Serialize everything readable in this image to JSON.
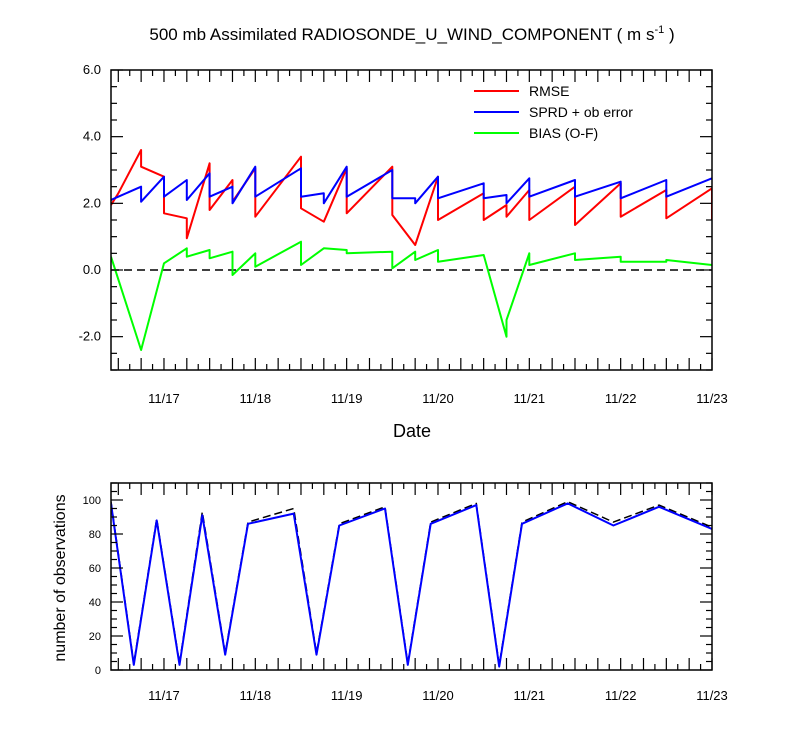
{
  "title_main": "500 mb Assimilated RADIOSONDE_U_WIND_COMPONENT ( m s",
  "title_exp": "-1",
  "title_close": " )",
  "colors": {
    "rmse": "#ff0000",
    "sprd": "#0000ff",
    "bias": "#00ff00",
    "obs_used": "#0000ff",
    "obs_possible": "#000000",
    "zero": "#000000"
  },
  "chart_data": [
    {
      "type": "line",
      "xlabel": "Date",
      "ylabel": "",
      "xlim": [
        16.42,
        23.0
      ],
      "ylim": [
        -3.0,
        6.0
      ],
      "x_ticks": [
        17,
        18,
        19,
        20,
        21,
        22,
        23
      ],
      "x_ticklabels": [
        "11/17",
        "11/18",
        "11/19",
        "11/20",
        "11/21",
        "11/22",
        "11/23"
      ],
      "y_ticks": [
        -2,
        0,
        2,
        4,
        6
      ],
      "y_ticklabels": [
        "-2.0",
        "0.0",
        "2.0",
        "4.0",
        "6.0"
      ],
      "legend_position": "top-right",
      "zero_line": "dashed",
      "series": [
        {
          "name": "RMSE",
          "color_key": "rmse",
          "points": [
            [
              16.42,
              1.95
            ],
            [
              16.5,
              2.3
            ],
            [
              16.75,
              3.6
            ],
            [
              16.75,
              3.1
            ],
            [
              17.0,
              2.8
            ],
            [
              17.0,
              1.7
            ],
            [
              17.25,
              1.55
            ],
            [
              17.25,
              0.95
            ],
            [
              17.5,
              3.2
            ],
            [
              17.5,
              1.8
            ],
            [
              17.75,
              2.7
            ],
            [
              17.75,
              2.05
            ],
            [
              18.0,
              3.05
            ],
            [
              18.0,
              1.6
            ],
            [
              18.5,
              3.4
            ],
            [
              18.5,
              1.85
            ],
            [
              18.75,
              1.45
            ],
            [
              19.0,
              3.05
            ],
            [
              19.0,
              1.7
            ],
            [
              19.5,
              3.1
            ],
            [
              19.5,
              1.65
            ],
            [
              19.75,
              0.75
            ],
            [
              20.0,
              2.8
            ],
            [
              20.0,
              1.5
            ],
            [
              20.5,
              2.3
            ],
            [
              20.5,
              1.5
            ],
            [
              20.75,
              1.95
            ],
            [
              20.75,
              1.6
            ],
            [
              21.0,
              2.4
            ],
            [
              21.0,
              1.5
            ],
            [
              21.5,
              2.5
            ],
            [
              21.5,
              1.35
            ],
            [
              22.0,
              2.6
            ],
            [
              22.0,
              1.6
            ],
            [
              22.5,
              2.4
            ],
            [
              22.5,
              1.55
            ],
            [
              23.0,
              2.45
            ],
            [
              23.0,
              1.5
            ]
          ]
        },
        {
          "name": "SPRD + ob error",
          "color_key": "sprd",
          "points": [
            [
              16.42,
              2.1
            ],
            [
              16.5,
              2.2
            ],
            [
              16.75,
              2.5
            ],
            [
              16.75,
              2.05
            ],
            [
              17.0,
              2.8
            ],
            [
              17.0,
              2.2
            ],
            [
              17.25,
              2.7
            ],
            [
              17.25,
              2.1
            ],
            [
              17.5,
              2.9
            ],
            [
              17.5,
              2.2
            ],
            [
              17.75,
              2.5
            ],
            [
              17.75,
              2.0
            ],
            [
              18.0,
              3.1
            ],
            [
              18.0,
              2.2
            ],
            [
              18.5,
              3.05
            ],
            [
              18.5,
              2.2
            ],
            [
              18.75,
              2.3
            ],
            [
              18.75,
              2.0
            ],
            [
              19.0,
              3.1
            ],
            [
              19.0,
              2.2
            ],
            [
              19.5,
              3.0
            ],
            [
              19.5,
              2.15
            ],
            [
              19.75,
              2.15
            ],
            [
              19.75,
              2.0
            ],
            [
              20.0,
              2.8
            ],
            [
              20.0,
              2.15
            ],
            [
              20.5,
              2.6
            ],
            [
              20.5,
              2.15
            ],
            [
              20.75,
              2.25
            ],
            [
              20.75,
              2.0
            ],
            [
              21.0,
              2.75
            ],
            [
              21.0,
              2.2
            ],
            [
              21.5,
              2.7
            ],
            [
              21.5,
              2.2
            ],
            [
              22.0,
              2.65
            ],
            [
              22.0,
              2.15
            ],
            [
              22.5,
              2.7
            ],
            [
              22.5,
              2.2
            ],
            [
              23.0,
              2.75
            ]
          ]
        },
        {
          "name": "BIAS (O-F)",
          "color_key": "bias",
          "points": [
            [
              16.42,
              0.4
            ],
            [
              16.75,
              -2.4
            ],
            [
              17.0,
              0.2
            ],
            [
              17.25,
              0.65
            ],
            [
              17.25,
              0.4
            ],
            [
              17.5,
              0.6
            ],
            [
              17.5,
              0.35
            ],
            [
              17.75,
              0.55
            ],
            [
              17.75,
              -0.15
            ],
            [
              18.0,
              0.5
            ],
            [
              18.0,
              0.1
            ],
            [
              18.5,
              0.85
            ],
            [
              18.5,
              0.15
            ],
            [
              18.75,
              0.65
            ],
            [
              19.0,
              0.6
            ],
            [
              19.0,
              0.5
            ],
            [
              19.5,
              0.55
            ],
            [
              19.5,
              0.05
            ],
            [
              19.75,
              0.55
            ],
            [
              19.75,
              0.3
            ],
            [
              20.0,
              0.6
            ],
            [
              20.0,
              0.25
            ],
            [
              20.5,
              0.45
            ],
            [
              20.75,
              -2.0
            ],
            [
              20.75,
              -1.5
            ],
            [
              21.0,
              0.5
            ],
            [
              21.0,
              0.15
            ],
            [
              21.5,
              0.5
            ],
            [
              21.5,
              0.3
            ],
            [
              22.0,
              0.4
            ],
            [
              22.0,
              0.25
            ],
            [
              22.5,
              0.25
            ],
            [
              22.5,
              0.3
            ],
            [
              23.0,
              0.15
            ]
          ]
        }
      ]
    },
    {
      "type": "line",
      "xlabel": "",
      "ylabel": "number of observations",
      "xlim": [
        16.42,
        23.0
      ],
      "ylim": [
        0,
        110
      ],
      "x_ticks": [
        17,
        18,
        19,
        20,
        21,
        22,
        23
      ],
      "x_ticklabels": [
        "11/17",
        "11/18",
        "11/19",
        "11/20",
        "11/21",
        "11/22",
        "11/23"
      ],
      "y_ticks": [
        0,
        20,
        40,
        60,
        80,
        100
      ],
      "y_ticklabels": [
        "0",
        "20",
        "40",
        "60",
        "80",
        "100"
      ],
      "series": [
        {
          "style": "dashed",
          "color_key": "obs_possible",
          "points": [
            [
              16.42,
              99
            ],
            [
              16.67,
              4
            ],
            [
              16.92,
              89
            ],
            [
              17.17,
              4
            ],
            [
              17.42,
              93
            ],
            [
              17.67,
              10
            ],
            [
              17.92,
              87
            ],
            [
              18.42,
              95
            ],
            [
              18.67,
              10
            ],
            [
              18.92,
              86
            ],
            [
              19.42,
              96
            ],
            [
              19.67,
              4
            ],
            [
              19.92,
              87
            ],
            [
              20.42,
              98
            ],
            [
              20.67,
              3
            ],
            [
              20.92,
              87
            ],
            [
              21.42,
              99
            ],
            [
              21.92,
              87
            ],
            [
              22.42,
              97
            ],
            [
              23.0,
              84
            ]
          ]
        },
        {
          "style": "solid",
          "color_key": "obs_used",
          "points": [
            [
              16.42,
              98
            ],
            [
              16.67,
              3
            ],
            [
              16.92,
              88
            ],
            [
              17.17,
              3
            ],
            [
              17.42,
              91
            ],
            [
              17.67,
              9
            ],
            [
              17.92,
              86
            ],
            [
              18.42,
              92
            ],
            [
              18.67,
              9
            ],
            [
              18.92,
              85
            ],
            [
              19.42,
              95
            ],
            [
              19.67,
              3
            ],
            [
              19.92,
              86
            ],
            [
              20.42,
              97
            ],
            [
              20.67,
              2
            ],
            [
              20.92,
              86
            ],
            [
              21.42,
              98
            ],
            [
              21.92,
              85
            ],
            [
              22.42,
              96
            ],
            [
              23.0,
              83
            ]
          ]
        }
      ]
    }
  ]
}
